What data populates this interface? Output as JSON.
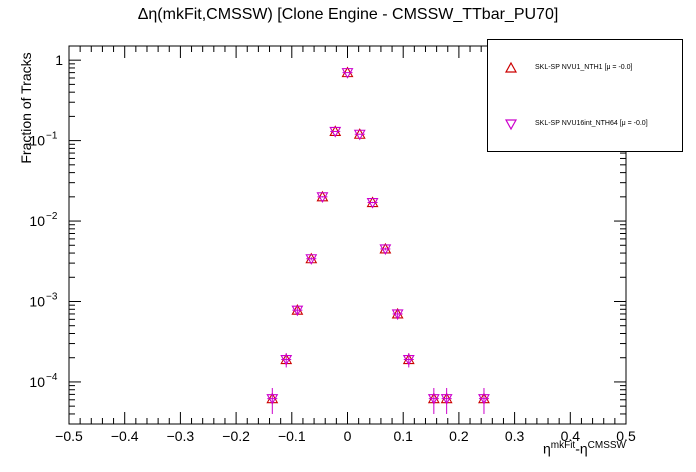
{
  "chart_data": {
    "type": "scatter",
    "title": "Δη(mkFit,CMSSW) [Clone Engine - CMSSW_TTbar_PU70]",
    "xlabel": "η^mkFit-η^CMSSW",
    "xlabel_parts": {
      "base1": "η",
      "sup1": "mkFit",
      "mid": "-η",
      "sup2": "CMSSW"
    },
    "ylabel": "Fraction of Tracks",
    "xlim": [
      -0.5,
      0.5
    ],
    "ylim": [
      3e-05,
      1.5
    ],
    "yscale": "log",
    "grid": false,
    "legend_position": "top-right",
    "x_ticks": [
      "−0.5",
      "−0.4",
      "−0.3",
      "−0.2",
      "−0.1",
      "0",
      "0.1",
      "0.2",
      "0.3",
      "0.4",
      "0.5"
    ],
    "y_ticks": [
      {
        "value": 1,
        "label": "1"
      },
      {
        "value": 0.1,
        "label": "10",
        "exp": "−1"
      },
      {
        "value": 0.01,
        "label": "10",
        "exp": "−2"
      },
      {
        "value": 0.001,
        "label": "10",
        "exp": "−3"
      },
      {
        "value": 0.0001,
        "label": "10",
        "exp": "−4"
      }
    ],
    "series": [
      {
        "name": "SKL-SP NVU1_NTH1 [μ = -0.0]",
        "marker": "triangle-up",
        "color": "#cc0000",
        "x": [
          -0.135,
          -0.11,
          -0.09,
          -0.065,
          -0.045,
          -0.022,
          0.0,
          0.022,
          0.045,
          0.068,
          0.09,
          0.11,
          0.155,
          0.178,
          0.245
        ],
        "y": [
          6.2e-05,
          0.00019,
          0.00078,
          0.0034,
          0.02,
          0.13,
          0.7,
          0.12,
          0.017,
          0.0045,
          0.0007,
          0.00019,
          6.2e-05,
          6.2e-05,
          6.2e-05
        ]
      },
      {
        "name": "SKL-SP NVU16int_NTH64 [μ = -0.0]",
        "marker": "triangle-down",
        "color": "#cc00cc",
        "x": [
          -0.135,
          -0.11,
          -0.09,
          -0.065,
          -0.045,
          -0.022,
          0.0,
          0.022,
          0.045,
          0.068,
          0.09,
          0.11,
          0.155,
          0.178,
          0.245
        ],
        "y": [
          6.2e-05,
          0.00019,
          0.00078,
          0.0034,
          0.02,
          0.13,
          0.7,
          0.12,
          0.017,
          0.0045,
          0.0007,
          0.00019,
          6.2e-05,
          6.2e-05,
          6.2e-05
        ]
      }
    ]
  }
}
